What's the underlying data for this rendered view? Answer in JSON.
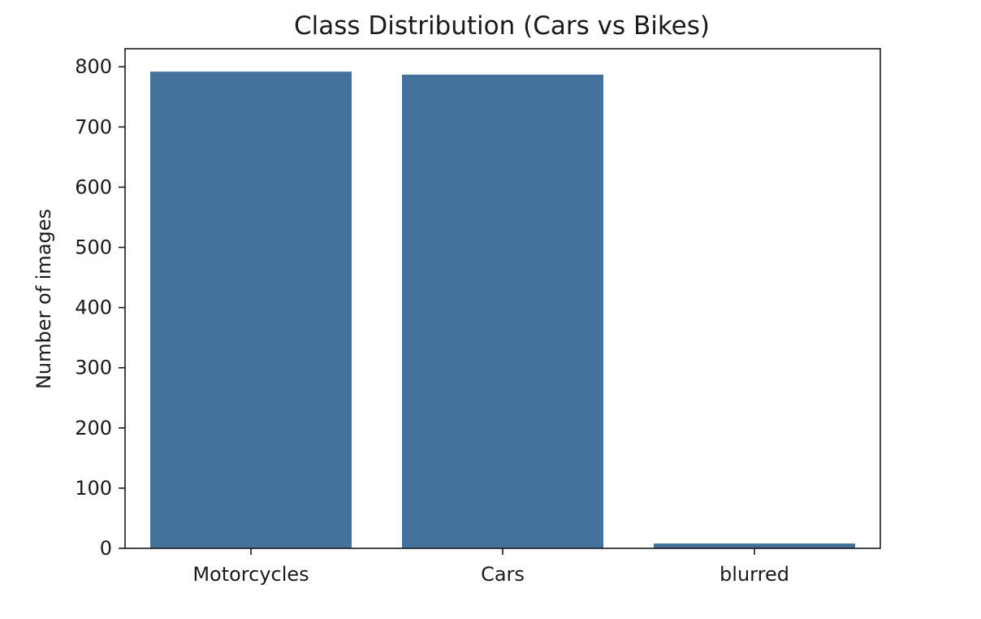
{
  "chart_data": {
    "type": "bar",
    "title": "Class Distribution (Cars vs Bikes)",
    "xlabel": "",
    "ylabel": "Number of images",
    "categories": [
      "Motorcycles",
      "Cars",
      "blurred"
    ],
    "values": [
      792,
      787,
      8
    ],
    "ylim": [
      0,
      830
    ],
    "yticks": [
      0,
      100,
      200,
      300,
      400,
      500,
      600,
      700,
      800
    ],
    "bar_color": "#44729d",
    "grid": false,
    "legend": "none"
  }
}
